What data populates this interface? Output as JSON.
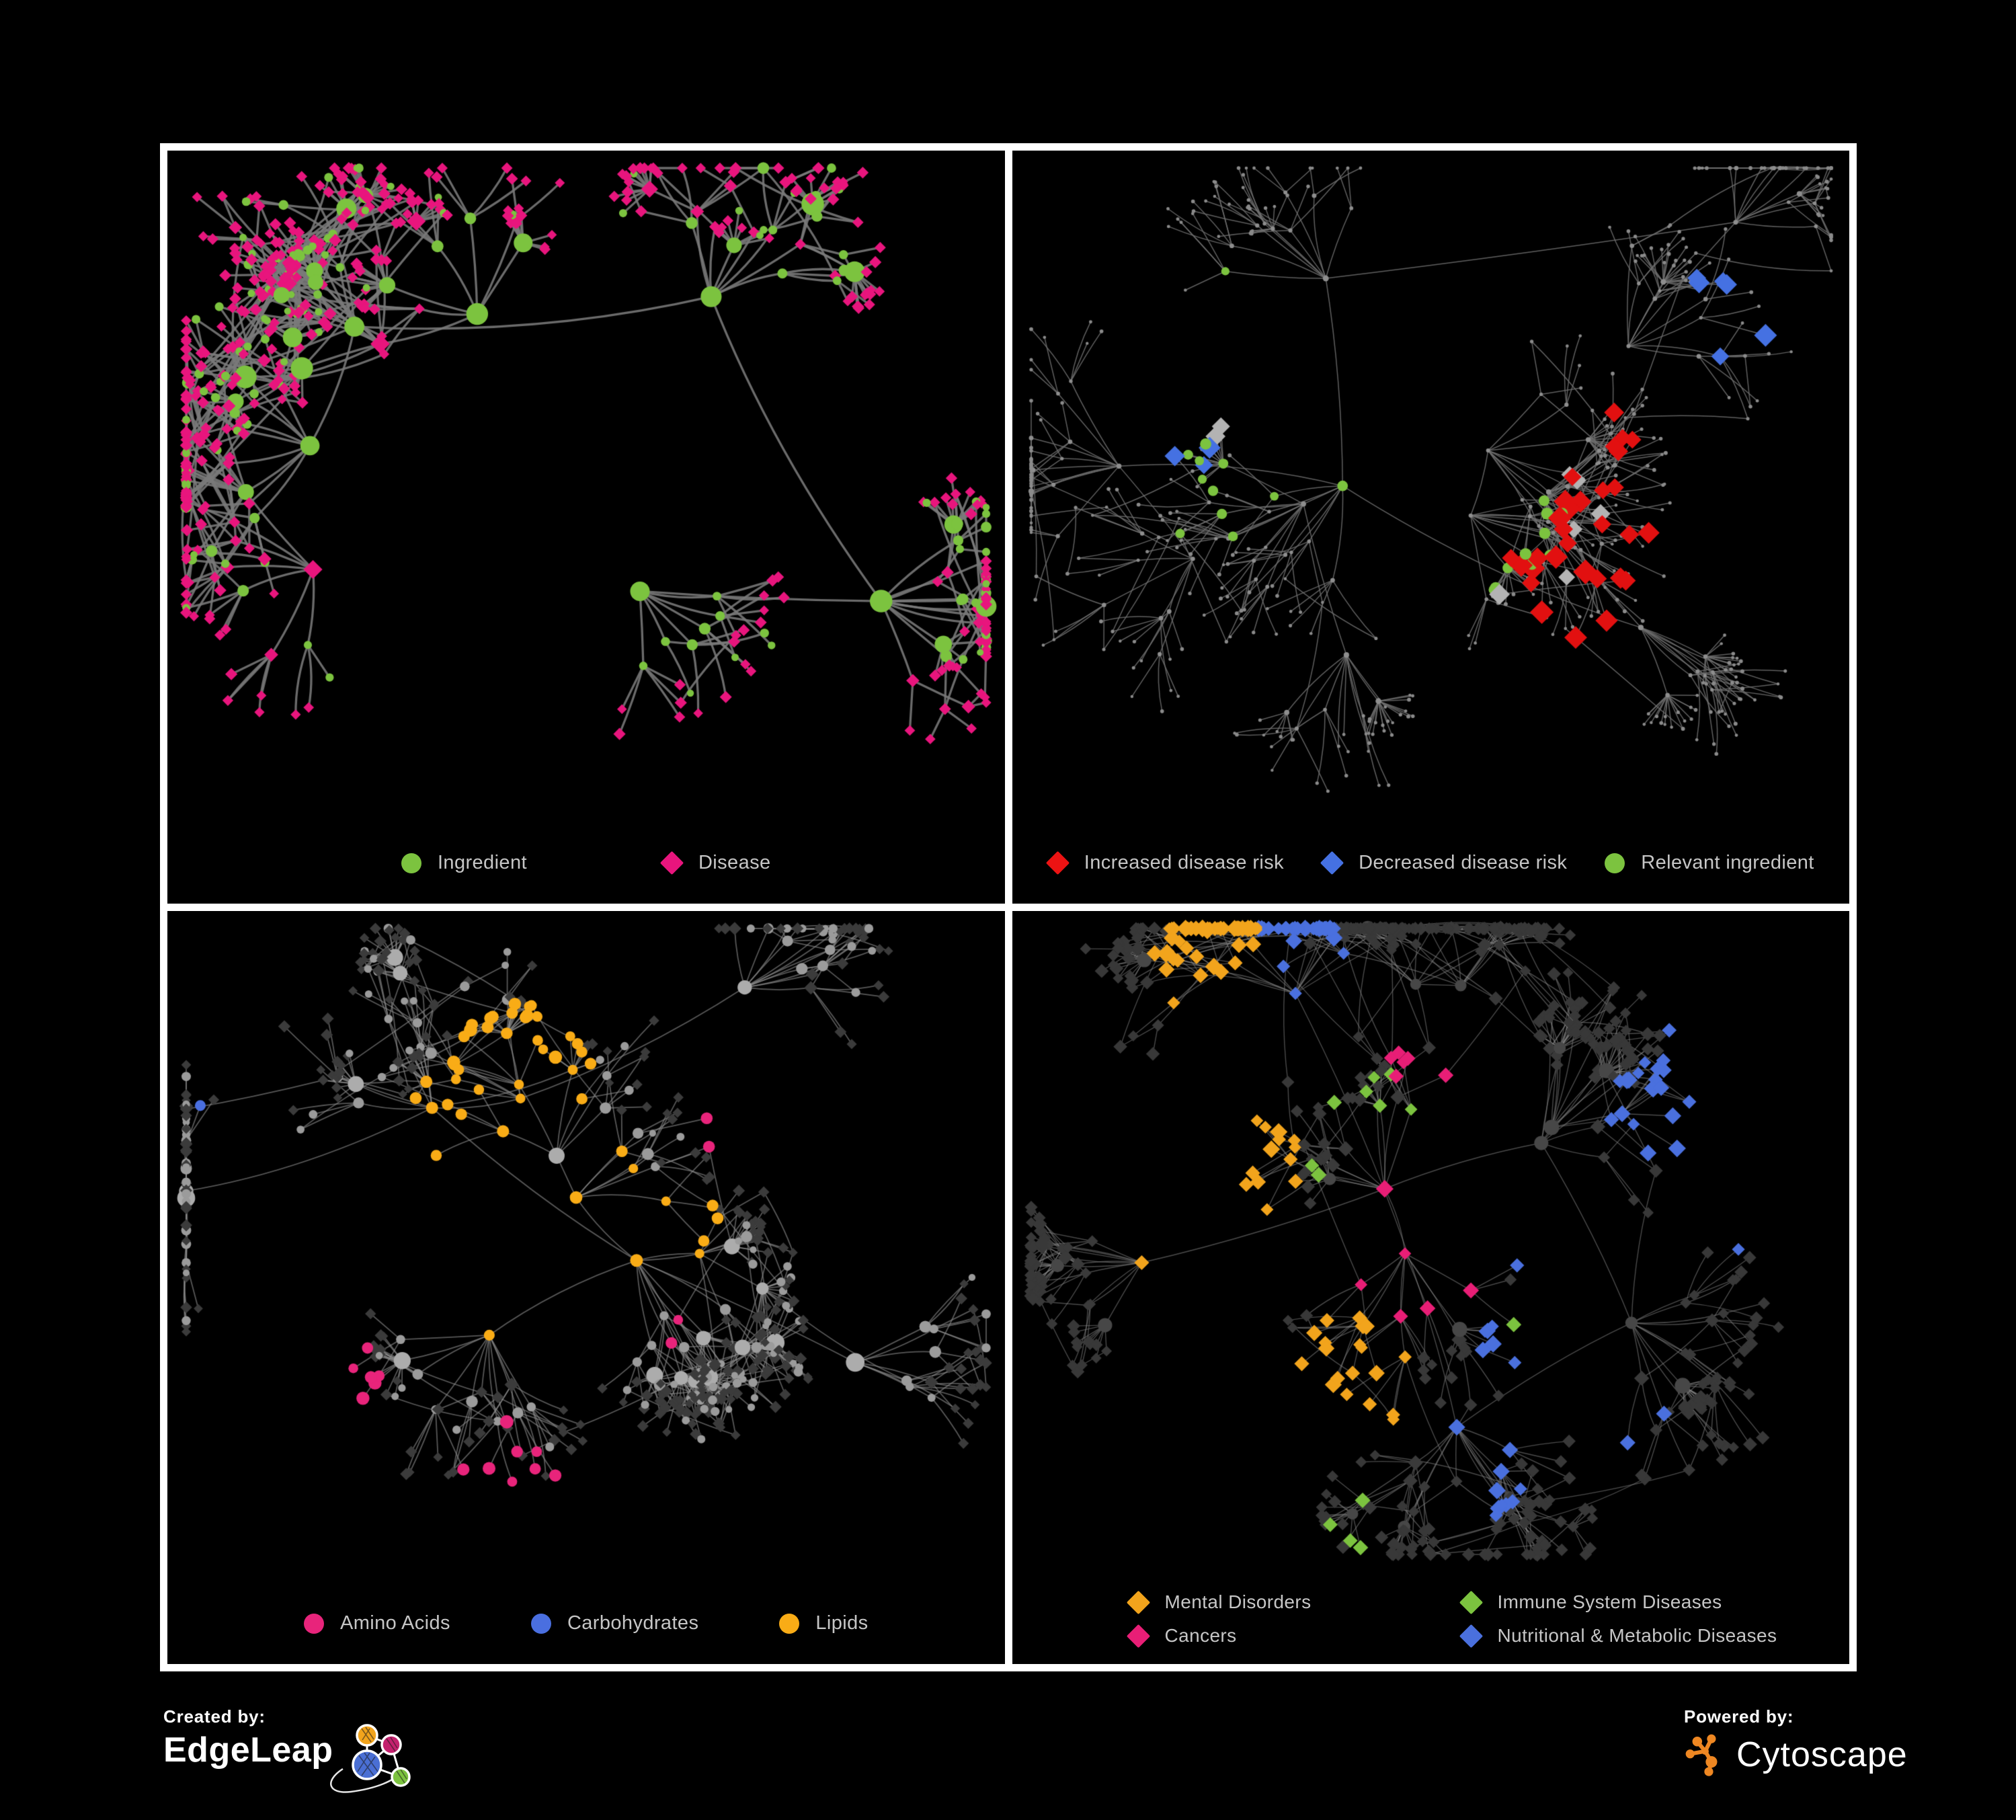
{
  "background": "#000000",
  "panel_border_color": "#ffffff",
  "legend_text_color": "#c6c6c6",
  "panels": [
    {
      "id": "ingredient-disease",
      "legend": [
        {
          "label": "Ingredient",
          "shape": "circle",
          "color": "#7CC33F"
        },
        {
          "label": "Disease",
          "shape": "diamond",
          "color": "#E8157D"
        }
      ],
      "network": {
        "seed": 11,
        "clusters": 9,
        "nodes": 600,
        "cross_links": 110,
        "edge_color": "#7A7A7A",
        "edge_width": 3.3,
        "edge_alpha": 0.88,
        "legend_clear": 140,
        "styles": {
          "hub": [
            {
              "shape": "circle",
              "color": "#7CC33F",
              "size": [
                11,
                17
              ],
              "p": 0.8
            },
            {
              "shape": "diamond",
              "color": "#E8157D",
              "size": [
                9,
                12
              ],
              "p": 0.2
            }
          ],
          "mid": [
            {
              "shape": "circle",
              "color": "#7CC33F",
              "size": [
                6,
                9
              ],
              "p": 0.5
            },
            {
              "shape": "diamond",
              "color": "#E8157D",
              "size": [
                6,
                8
              ],
              "p": 0.5
            }
          ],
          "leaf": [
            {
              "shape": "circle",
              "color": "#7CC33F",
              "size": [
                5,
                7
              ],
              "p": 0.16
            },
            {
              "shape": "diamond",
              "color": "#E8157D",
              "size": [
                5.5,
                7
              ],
              "p": 0.84
            }
          ]
        },
        "highlights": []
      }
    },
    {
      "id": "disease-risk",
      "legend": [
        {
          "label": "Increased disease risk",
          "shape": "diamond",
          "color": "#EC1313"
        },
        {
          "label": "Decreased disease risk",
          "shape": "diamond",
          "color": "#4571E2"
        },
        {
          "label": "Relevant ingredient",
          "shape": "circle",
          "color": "#7CC33F"
        }
      ],
      "network": {
        "seed": 77,
        "clusters": 12,
        "nodes": 620,
        "cross_links": 45,
        "edge_color": "#707070",
        "edge_width": 1.5,
        "edge_alpha": 0.85,
        "legend_clear": 140,
        "styles": {
          "hub": {
            "shape": "circle",
            "color": "#8E8E8E",
            "size": [
              3,
              4.5
            ]
          },
          "mid": {
            "shape": "circle",
            "color": "#8E8E8E",
            "size": [
              2.5,
              3.5
            ]
          },
          "leaf": {
            "shape": "circle",
            "color": "#8A8A8A",
            "size": [
              2.2,
              3
            ]
          }
        },
        "highlights": [
          {
            "shape": "diamond",
            "color": "#E21010",
            "size": [
              10,
              14
            ],
            "count": 30,
            "radius": 0.14,
            "anchors": [
              [
                0.36,
                0.33
              ],
              [
                0.5,
                0.38
              ],
              [
                0.47,
                0.55
              ],
              [
                0.66,
                0.42
              ],
              [
                0.7,
                0.64
              ]
            ]
          },
          {
            "shape": "diamond",
            "color": "#4571E2",
            "size": [
              10,
              13
            ],
            "count": 9,
            "radius": 0.09,
            "anchors": [
              [
                0.23,
                0.4
              ],
              [
                0.86,
                0.26
              ]
            ]
          },
          {
            "shape": "diamond",
            "color": "#B3B3B3",
            "size": [
              9,
              12
            ],
            "count": 9,
            "radius": 0.13,
            "anchors": [
              [
                0.3,
                0.34
              ],
              [
                0.5,
                0.48
              ],
              [
                0.62,
                0.58
              ]
            ]
          },
          {
            "shape": "circle",
            "color": "#7CC33F",
            "size": [
              6,
              9
            ],
            "count": 24,
            "radius": 0.16,
            "anchors": [
              [
                0.33,
                0.3
              ],
              [
                0.46,
                0.4
              ],
              [
                0.55,
                0.52
              ],
              [
                0.25,
                0.45
              ]
            ]
          }
        ]
      }
    },
    {
      "id": "nutrient-classes",
      "legend": [
        {
          "label": "Amino Acids",
          "shape": "circle",
          "color": "#E8247B"
        },
        {
          "label": "Carbohydrates",
          "shape": "circle",
          "color": "#4A6FE0"
        },
        {
          "label": "Lipids",
          "shape": "circle",
          "color": "#F9AC16"
        }
      ],
      "network": {
        "seed": 23,
        "clusters": 9,
        "nodes": 560,
        "cross_links": 90,
        "edge_color": "#8C8C8C",
        "edge_width": 1.8,
        "edge_alpha": 0.62,
        "legend_clear": 140,
        "styles": {
          "hub": {
            "shape": "circle",
            "color": "#ACACAC",
            "size": [
              9,
              14
            ]
          },
          "mid": [
            {
              "shape": "circle",
              "color": "#9B9B9B",
              "size": [
                6,
                9
              ],
              "p": 0.75
            },
            {
              "shape": "diamond",
              "color": "#3B3B3B",
              "size": [
                6,
                8
              ],
              "p": 0.25
            }
          ],
          "leaf": [
            {
              "shape": "diamond",
              "color": "#3B3B3B",
              "size": [
                5,
                7
              ],
              "p": 0.8
            },
            {
              "shape": "circle",
              "color": "#9B9B9B",
              "size": [
                5,
                7
              ],
              "p": 0.2
            }
          ]
        },
        "highlights": [
          {
            "shape": "circle",
            "color": "#F9AC16",
            "size": [
              7,
              10
            ],
            "count": 80,
            "radius": 0.11,
            "anchors": [
              [
                0.42,
                0.25
              ],
              [
                0.37,
                0.33
              ],
              [
                0.49,
                0.44
              ],
              [
                0.3,
                0.42
              ],
              [
                0.46,
                0.62
              ],
              [
                0.58,
                0.5
              ]
            ]
          },
          {
            "shape": "circle",
            "color": "#4A6FE0",
            "size": [
              7,
              9
            ],
            "count": 14,
            "radius": 0.06,
            "anchors": [
              [
                0.41,
                0.23
              ],
              [
                0.46,
                0.3
              ],
              [
                0.08,
                0.3
              ]
            ]
          },
          {
            "shape": "circle",
            "color": "#E8247B",
            "size": [
              7,
              10
            ],
            "count": 18,
            "radius": 0.09,
            "anchors": [
              [
                0.1,
                0.4
              ],
              [
                0.33,
                0.6
              ],
              [
                0.6,
                0.57
              ],
              [
                0.7,
                0.3
              ],
              [
                0.42,
                0.86
              ],
              [
                0.2,
                0.72
              ]
            ]
          }
        ]
      }
    },
    {
      "id": "disease-categories",
      "legend": [
        {
          "label": "Mental Disorders",
          "shape": "diamond",
          "color": "#F2A41C"
        },
        {
          "label": "Immune System Diseases",
          "shape": "diamond",
          "color": "#7CC33F"
        },
        {
          "label": "Cancers",
          "shape": "diamond",
          "color": "#E81E76"
        },
        {
          "label": "Nutritional & Metabolic Diseases",
          "shape": "diamond",
          "color": "#4A70DE"
        }
      ],
      "network": {
        "seed": 5,
        "clusters": 11,
        "nodes": 680,
        "cross_links": 130,
        "edge_color": "#868686",
        "edge_width": 1.4,
        "edge_alpha": 0.55,
        "legend_clear": 155,
        "styles": {
          "hub": {
            "shape": "circle",
            "color": "#474747",
            "size": [
              8,
              12
            ]
          },
          "mid": {
            "shape": "diamond",
            "color": "#3A3A3A",
            "size": [
              6,
              9
            ]
          },
          "leaf": {
            "shape": "diamond",
            "color": "#383838",
            "size": [
              6,
              8
            ]
          }
        },
        "highlights": [
          {
            "shape": "diamond",
            "color": "#F2A41C",
            "size": [
              7,
              10
            ],
            "count": 95,
            "radius": 0.1,
            "anchors": [
              [
                0.16,
                0.44
              ],
              [
                0.22,
                0.5
              ],
              [
                0.27,
                0.38
              ],
              [
                0.24,
                0.1
              ],
              [
                0.4,
                0.72
              ]
            ]
          },
          {
            "shape": "diamond",
            "color": "#E81E76",
            "size": [
              7,
              10
            ],
            "count": 60,
            "radius": 0.08,
            "anchors": [
              [
                0.47,
                0.46
              ],
              [
                0.53,
                0.55
              ],
              [
                0.43,
                0.58
              ],
              [
                0.92,
                0.27
              ],
              [
                0.3,
                0.8
              ],
              [
                0.5,
                0.2
              ]
            ]
          },
          {
            "shape": "diamond",
            "color": "#4A70DE",
            "size": [
              7,
              10
            ],
            "count": 80,
            "radius": 0.08,
            "anchors": [
              [
                0.6,
                0.62
              ],
              [
                0.67,
                0.55
              ],
              [
                0.77,
                0.3
              ],
              [
                0.84,
                0.2
              ],
              [
                0.34,
                0.08
              ],
              [
                0.9,
                0.48
              ],
              [
                0.55,
                0.86
              ],
              [
                0.72,
                0.75
              ]
            ]
          },
          {
            "shape": "diamond",
            "color": "#7CC33F",
            "size": [
              7,
              9
            ],
            "count": 13,
            "radius": 0.12,
            "anchors": [
              [
                0.44,
                0.34
              ],
              [
                0.54,
                0.6
              ],
              [
                0.73,
                0.56
              ],
              [
                0.4,
                0.88
              ]
            ]
          }
        ]
      }
    }
  ],
  "footer": {
    "created_by": "Created by:",
    "edgeleap": "EdgeLeap",
    "powered_by": "Powered by:",
    "cytoscape": "Cytoscape",
    "edgeleap_node_colors": {
      "orange": "#F2A41C",
      "magenta": "#C4216E",
      "blue": "#4A6FD4",
      "green": "#7CC33F"
    },
    "cytoscape_icon_color": "#EE8722"
  }
}
